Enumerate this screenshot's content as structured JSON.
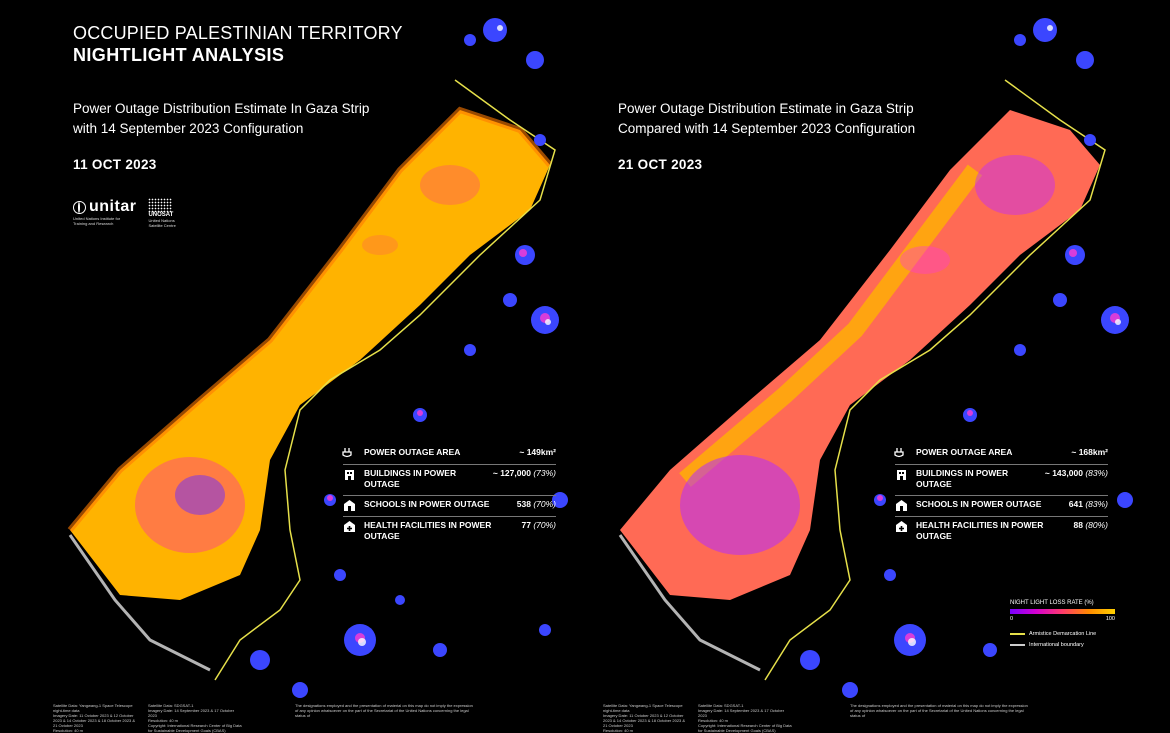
{
  "header": {
    "title_line1": "OCCUPIED PALESTINIAN TERRITORY",
    "title_line2": "NIGHTLIGHT ANALYSIS"
  },
  "logos": {
    "unitar_word": "unitar",
    "unitar_sub": "United Nations Institute for Training and Research",
    "unosat_word": "UNOSAT",
    "unosat_sub": "United Nations Satellite Centre"
  },
  "colors": {
    "background": "#000000",
    "outage_low": "#7a00ff",
    "outage_mid": "#ff3b6b",
    "outage_high": "#ffc21a",
    "lit_area": "#3b46ff",
    "armistice_line": "#e6e04a"
  },
  "left": {
    "subtitle_line1": "Power Outage Distribution Estimate In Gaza Strip",
    "subtitle_line2": "with 14 September 2023 Configuration",
    "date": "11 OCT 2023",
    "stats": [
      {
        "icon": "power-plug-icon",
        "label": "POWER OUTAGE AREA",
        "value": "~ 149km²",
        "pct": ""
      },
      {
        "icon": "building-icon",
        "label": "BUILDINGS IN POWER OUTAGE",
        "value": "~ 127,000",
        "pct": "(73%)"
      },
      {
        "icon": "school-icon",
        "label": "SCHOOLS IN POWER OUTAGE",
        "value": "538",
        "pct": "(70%)"
      },
      {
        "icon": "health-facility-icon",
        "label": "HEALTH FACILITIES IN POWER OUTAGE",
        "value": "77",
        "pct": "(70%)"
      }
    ],
    "footer_source": "Satellite Data: Yangwang-1 Space Telescope night-time data\nImagery Date: 11 October 2023 & 12 October 2023 & 14 October 2023 & 18 October 2023 & 21 October 2023\nResolution: 40 m",
    "footer_source2": "Satellite Data: SDGSAT-1\nImagery Date: 14 September 2023 & 17 October 2023\nResolution: 40 m\nCopyright: International Research Center of Big Data for Sustainable Development Goals (CBAS)",
    "footer_disclaimer": "The designations employed and the presentation of material on this map do not imply the expression of any opinion whatsoever on the part of the Secretariat of the United Nations concerning the legal status of"
  },
  "right": {
    "subtitle_line1": "Power Outage Distribution Estimate in Gaza Strip",
    "subtitle_line2": "Compared with 14 September 2023 Configuration",
    "date": "21 OCT 2023",
    "stats": [
      {
        "icon": "power-plug-icon",
        "label": "POWER OUTAGE AREA",
        "value": "~ 168km²",
        "pct": ""
      },
      {
        "icon": "building-icon",
        "label": "BUILDINGS IN POWER OUTAGE",
        "value": "~ 143,000",
        "pct": "(83%)"
      },
      {
        "icon": "school-icon",
        "label": "SCHOOLS IN POWER OUTAGE",
        "value": "641",
        "pct": "(83%)"
      },
      {
        "icon": "health-facility-icon",
        "label": "HEALTH FACILITIES IN POWER OUTAGE",
        "value": "88",
        "pct": "(80%)"
      }
    ],
    "footer_source": "Satellite Data: Yangwang-1 Space Telescope night-time data\nImagery Date: 11 October 2023 & 12 October 2023 & 14 October 2023 & 18 October 2023 & 21 October 2023\nResolution: 40 m",
    "footer_source2": "Satellite Data: SDGSAT-1\nImagery Date: 14 September 2023 & 17 October 2023\nResolution: 40 m\nCopyright: International Research Center of Big Data for Sustainable Development Goals (CBAS)",
    "footer_disclaimer": "The designations employed and the presentation of material on this map do not imply the expression of any opinion whatsoever on the part of the Secretariat of the United Nations concerning the legal status of"
  },
  "legend": {
    "title": "NIGHT LIGHT LOSS RATE (%)",
    "min": "0",
    "max": "100",
    "armistice": "Armistice Demarcation Line",
    "boundary": "International boundary"
  }
}
